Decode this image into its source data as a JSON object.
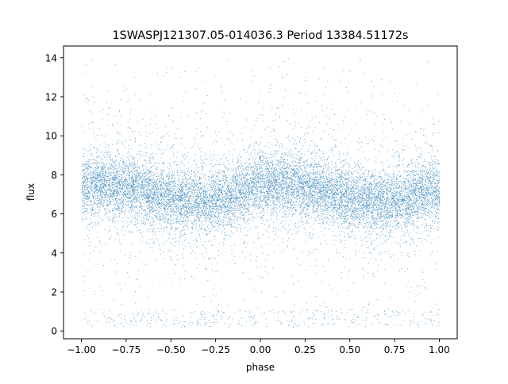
{
  "chart_data": {
    "type": "scatter",
    "title": "1SWASPJ121307.05-014036.3 Period 13384.51172s",
    "xlabel": "phase",
    "ylabel": "flux",
    "xlim": [
      -1.1,
      1.1
    ],
    "ylim": [
      -0.4,
      14.6
    ],
    "x_ticks": [
      -1.0,
      -0.75,
      -0.5,
      -0.25,
      0.0,
      0.25,
      0.5,
      0.75,
      1.0
    ],
    "x_tick_labels": [
      "−1.00",
      "−0.75",
      "−0.50",
      "−0.25",
      "0.00",
      "0.25",
      "0.50",
      "0.75",
      "1.00"
    ],
    "y_ticks": [
      0,
      2,
      4,
      6,
      8,
      10,
      12,
      14
    ],
    "y_tick_labels": [
      "0",
      "2",
      "4",
      "6",
      "8",
      "10",
      "12",
      "14"
    ],
    "grid": false,
    "legend": "none",
    "marker_color": "#1f77b4",
    "series": [
      {
        "phase": [
          -1.0,
          -0.875,
          -0.75,
          -0.625,
          -0.5,
          -0.375,
          -0.25,
          -0.125,
          0.0,
          0.125,
          0.25,
          0.375,
          0.5,
          0.625,
          0.75,
          0.875,
          1.0
        ],
        "mean_flux": [
          7.4,
          7.5,
          7.4,
          7.1,
          6.8,
          6.6,
          6.7,
          7.1,
          7.5,
          7.6,
          7.4,
          7.1,
          6.8,
          6.6,
          6.7,
          7.0,
          7.2
        ],
        "spread_flux": 0.8
      }
    ]
  }
}
